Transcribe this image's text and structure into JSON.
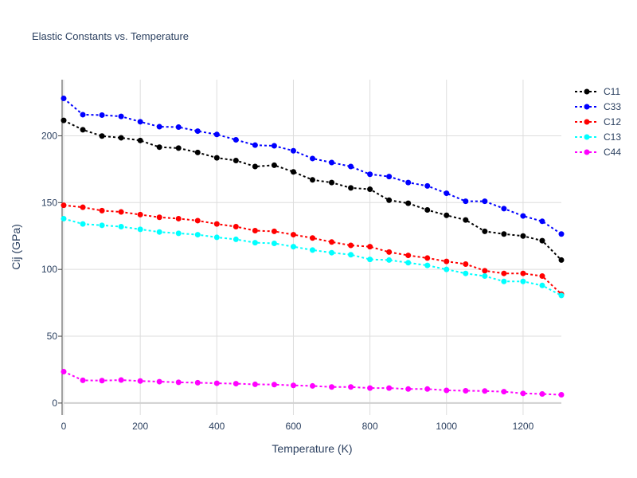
{
  "chart_data": {
    "type": "line",
    "title": "Elastic Constants vs. Temperature",
    "xlabel": "Temperature (K)",
    "ylabel": "Cij (GPa)",
    "xlim": [
      0,
      1300
    ],
    "ylim": [
      -9,
      242
    ],
    "xticks": [
      0,
      200,
      400,
      600,
      800,
      1000,
      1200
    ],
    "yticks": [
      0,
      50,
      100,
      150,
      200
    ],
    "grid": true,
    "legend_position": "top-right",
    "line_style": "dotted with markers",
    "x": [
      0,
      50,
      100,
      150,
      200,
      250,
      300,
      350,
      400,
      450,
      500,
      550,
      600,
      650,
      700,
      750,
      800,
      850,
      900,
      950,
      1000,
      1050,
      1100,
      1150,
      1200,
      1250,
      1300
    ],
    "series": [
      {
        "name": "C11",
        "color": "#000000",
        "values": [
          211.5,
          204.5,
          199.8,
          198.5,
          196.5,
          191.5,
          190.8,
          187.5,
          183.5,
          181.5,
          177.0,
          178.0,
          173.0,
          167.0,
          165.0,
          161.0,
          160.0,
          151.8,
          149.5,
          144.5,
          140.5,
          137.0,
          128.5,
          126.5,
          125.0,
          121.5,
          107.0
        ]
      },
      {
        "name": "C33",
        "color": "#0000ff",
        "values": [
          228.0,
          215.8,
          215.5,
          214.5,
          210.5,
          206.8,
          206.5,
          203.5,
          201.0,
          197.0,
          193.0,
          192.5,
          188.8,
          183.0,
          180.0,
          177.0,
          171.2,
          169.5,
          165.0,
          162.5,
          157.0,
          151.0,
          151.0,
          145.5,
          140.0,
          136.0,
          126.5
        ]
      },
      {
        "name": "C12",
        "color": "#ff0000",
        "values": [
          148.0,
          146.5,
          144.0,
          143.0,
          141.0,
          139.0,
          138.0,
          136.5,
          134.0,
          132.0,
          129.0,
          128.5,
          126.0,
          123.5,
          120.5,
          118.0,
          117.0,
          113.0,
          110.5,
          108.5,
          106.0,
          104.0,
          99.0,
          97.0,
          97.0,
          95.0,
          81.5
        ]
      },
      {
        "name": "C13",
        "color": "#00ffff",
        "values": [
          138.0,
          134.0,
          133.0,
          132.0,
          130.0,
          128.0,
          127.0,
          126.0,
          124.0,
          122.5,
          120.0,
          119.5,
          117.0,
          114.5,
          112.5,
          111.0,
          107.5,
          107.0,
          105.0,
          103.0,
          100.0,
          97.0,
          95.0,
          91.0,
          91.0,
          88.0,
          80.5
        ]
      },
      {
        "name": "C44",
        "color": "#ff00ff",
        "values": [
          23.5,
          17.0,
          16.8,
          17.2,
          16.5,
          16.0,
          15.5,
          15.2,
          14.8,
          14.5,
          14.0,
          13.8,
          13.2,
          12.8,
          12.0,
          12.0,
          11.2,
          11.2,
          10.5,
          10.5,
          9.5,
          9.2,
          9.0,
          8.5,
          7.2,
          6.8,
          6.2
        ]
      }
    ]
  }
}
